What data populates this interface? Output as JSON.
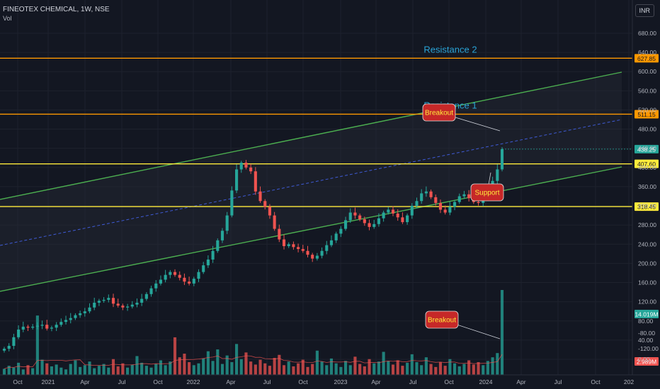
{
  "header": {
    "symbol": "FINEOTEX CHEMICAL, 1W, NSE",
    "volume_label": "Vol",
    "currency": "INR"
  },
  "colors": {
    "bg": "#131722",
    "grid": "#1e222d",
    "up": "#26a69a",
    "down": "#ef5350",
    "channel": "#4caf50",
    "midline": "#3f5bd6",
    "support_res": "#ffeb3b",
    "resistance": "#ff9800",
    "label_text": "#2aa3d6",
    "callout": "#c62828",
    "axis_text": "#b2b5be"
  },
  "chart_data": [
    {
      "type": "candlestick",
      "title": "FINEOTEX CHEMICAL, 1W, NSE",
      "x_tick_labels": [
        "Oct",
        "2021",
        "Apr",
        "Jul",
        "Oct",
        "2022",
        "Apr",
        "Jul",
        "Oct",
        "2023",
        "Apr",
        "Jul",
        "Oct",
        "2024",
        "Apr",
        "Jul",
        "Oct",
        "202"
      ],
      "y_tick_labels": [
        "680.00",
        "640.00",
        "600.00",
        "560.00",
        "520.00",
        "480.00",
        "440.00",
        "400.00",
        "360.00",
        "320.00",
        "280.00",
        "240.00",
        "200.00",
        "160.00",
        "120.00",
        "80.00",
        "40.00",
        "0.00"
      ],
      "ylim": [
        0,
        700
      ],
      "grid": true,
      "horizontal_levels": [
        {
          "value": 627.85,
          "label": "627.85",
          "annotation": "Resistance 2",
          "color": "#ff9800"
        },
        {
          "value": 511.15,
          "label": "511.15",
          "annotation": "Resistance 1",
          "color": "#ff9800"
        },
        {
          "value": 407.6,
          "label": "407.60",
          "annotation": "",
          "color": "#ffeb3b"
        },
        {
          "value": 318.45,
          "label": "318.45",
          "annotation": "",
          "color": "#ffeb3b"
        }
      ],
      "last_price": {
        "value": 438.25,
        "label": "438.25"
      },
      "callouts": [
        "Breakout",
        "Support"
      ],
      "weekly_close": [
        22,
        28,
        46,
        62,
        68,
        66,
        68,
        70,
        72,
        64,
        66,
        72,
        78,
        82,
        86,
        92,
        96,
        100,
        108,
        118,
        122,
        124,
        128,
        116,
        112,
        108,
        110,
        114,
        118,
        126,
        136,
        148,
        158,
        166,
        176,
        182,
        176,
        170,
        162,
        158,
        168,
        182,
        196,
        208,
        226,
        248,
        268,
        300,
        352,
        396,
        410,
        400,
        392,
        350,
        330,
        318,
        300,
        272,
        250,
        236,
        240,
        234,
        230,
        226,
        218,
        210,
        216,
        226,
        238,
        248,
        262,
        272,
        290,
        306,
        300,
        292,
        284,
        276,
        282,
        294,
        306,
        312,
        304,
        296,
        286,
        300,
        320,
        330,
        346,
        350,
        338,
        326,
        312,
        306,
        318,
        328,
        340,
        344,
        336,
        328,
        326,
        334,
        352,
        372,
        396,
        438.25
      ]
    },
    {
      "type": "bar",
      "title": "Vol",
      "y_tick_labels": [
        "-80.00",
        "-120.00"
      ],
      "last_volume": {
        "value": 14.019,
        "label": "14.019M"
      },
      "avg_volume": {
        "value": 2.989,
        "label": "2.989M"
      },
      "callouts": [
        "Breakout"
      ],
      "values": [
        1.0,
        1.5,
        1.2,
        2.0,
        0.9,
        1.6,
        1.1,
        9.8,
        2.5,
        1.9,
        1.4,
        1.7,
        1.2,
        0.9,
        1.8,
        2.4,
        1.3,
        1.6,
        2.2,
        1.1,
        1.5,
        1.8,
        1.2,
        2.6,
        1.4,
        1.9,
        1.2,
        1.7,
        3.1,
        2.0,
        1.5,
        1.2,
        1.8,
        2.4,
        1.6,
        2.2,
        6.2,
        2.9,
        3.5,
        2.1,
        1.6,
        1.9,
        2.7,
        3.9,
        2.3,
        4.2,
        1.8,
        3.2,
        2.1,
        5.1,
        2.6,
        3.7,
        2.2,
        1.7,
        2.5,
        1.9,
        1.5,
        2.8,
        3.3,
        1.6,
        2.2,
        1.4,
        1.9,
        2.5,
        1.3,
        1.8,
        4.0,
        2.2,
        1.6,
        2.7,
        1.9,
        1.3,
        2.3,
        1.6,
        3.0,
        1.8,
        1.4,
        2.6,
        1.9,
        2.2,
        3.8,
        2.3,
        1.7,
        2.4,
        1.5,
        2.0,
        3.4,
        2.1,
        1.6,
        2.9,
        1.8,
        1.3,
        2.1,
        1.5,
        2.6,
        1.9,
        1.4,
        1.8,
        2.4,
        1.7,
        2.1,
        1.6,
        2.3,
        2.9,
        3.6,
        14.019
      ]
    }
  ]
}
